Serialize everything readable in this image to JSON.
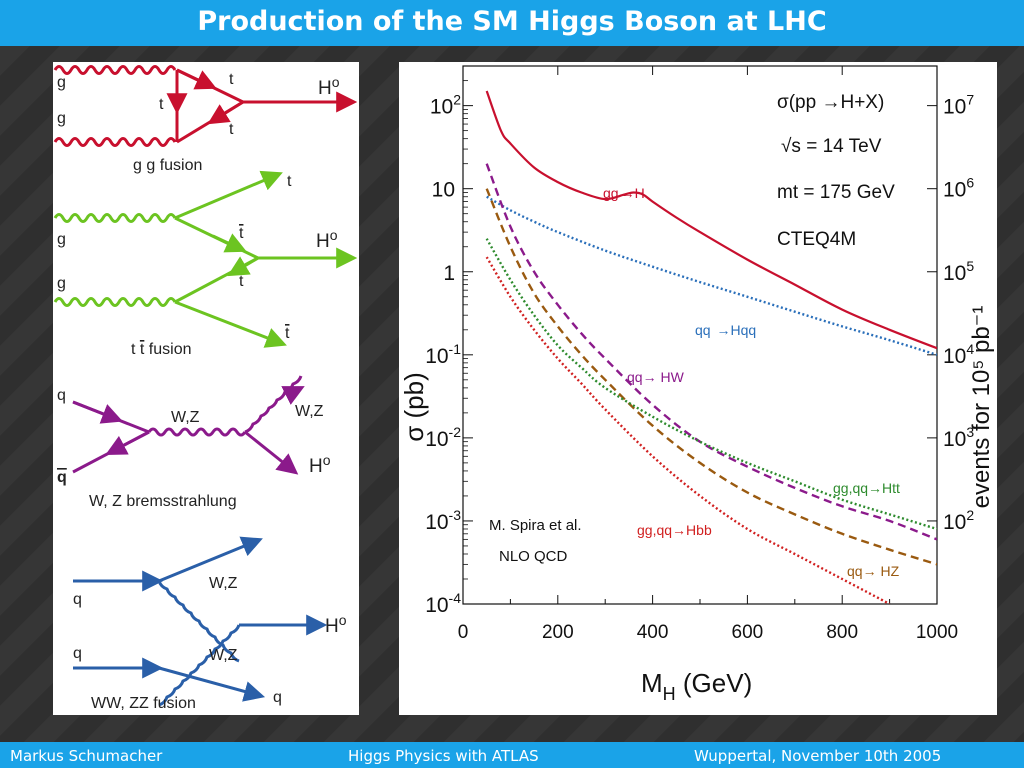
{
  "slide": {
    "title": "Production of the SM Higgs Boson at LHC",
    "footer": {
      "author": "Markus  Schumacher",
      "talk": "Higgs Physics  with ATLAS",
      "place_date": "Wuppertal, November 10th 2005"
    },
    "colors": {
      "bar": "#1aa3e8",
      "gg": "#c8102e",
      "ttbar": "#6cc421",
      "bremsstrahlung": "#8b1a8b",
      "vbf": "#2a5fa8"
    }
  },
  "diagrams": {
    "ggf": {
      "caption": "g g fusion",
      "g_top": "g",
      "g_bottom": "g",
      "t_top": "t",
      "t_mid": "t",
      "t_bottom": "t",
      "higgs": "H",
      "higgs_sup": "o"
    },
    "tth": {
      "caption_pre": "t ",
      "caption_bar": "t",
      "caption_post": " fusion",
      "g_top": "g",
      "g_bottom": "g",
      "t_top": "t",
      "tbar_mid": "t",
      "t_mid": "t",
      "tbar_bottom": "t",
      "higgs": "H",
      "higgs_sup": "o"
    },
    "wzbrems": {
      "caption": "W, Z bremsstrahlung",
      "q": "q",
      "qbar": "q",
      "boson_prop": "W,Z",
      "boson_out": "W,Z",
      "higgs": "H",
      "higgs_sup": "o"
    },
    "vbf": {
      "caption": "WW, ZZ fusion",
      "q_in_top": "q",
      "q_in_bottom": "q",
      "wz_top": "W,Z",
      "wz_bottom": "W,Z",
      "q_out": "q",
      "higgs": "H",
      "higgs_sup": "o"
    }
  },
  "chart_data": {
    "type": "line",
    "xlabel_main": "M",
    "xlabel_sub": "H",
    "xlabel_unit": " (GeV)",
    "ylabel": "σ (pb)",
    "y2label": "events for 10⁵ pb⁻¹",
    "x_ticks": [
      "0",
      "200",
      "400",
      "600",
      "800",
      "1000"
    ],
    "y_ticks": [
      {
        "base": "10",
        "exp": "2"
      },
      {
        "base": "10",
        "exp": ""
      },
      {
        "base": "1",
        "exp": ""
      },
      {
        "base": "10",
        "exp": "-1"
      },
      {
        "base": "10",
        "exp": "-2"
      },
      {
        "base": "10",
        "exp": "-3"
      },
      {
        "base": "10",
        "exp": "-4"
      }
    ],
    "y2_ticks": [
      {
        "base": "10",
        "exp": "7"
      },
      {
        "base": "10",
        "exp": "6"
      },
      {
        "base": "10",
        "exp": "5"
      },
      {
        "base": "10",
        "exp": "4"
      },
      {
        "base": "10",
        "exp": "3"
      },
      {
        "base": "10",
        "exp": "2"
      }
    ],
    "xlim": [
      0,
      1000
    ],
    "ylim": [
      0.0001,
      300
    ],
    "y_scale": "log",
    "annotations": {
      "process": "σ(pp →H+X)",
      "sqrt_s": "√s = 14 TeV",
      "mt": "mt = 175 GeV",
      "pdf": "CTEQ4M",
      "ref1": "M. Spira et al.",
      "ref2": "NLO  QCD"
    },
    "series": [
      {
        "name": "gg →H",
        "color": "#c8102e",
        "style": "solid",
        "x": [
          50,
          80,
          100,
          150,
          200,
          250,
          300,
          340,
          360,
          380,
          400,
          450,
          500,
          600,
          700,
          800,
          900,
          1000
        ],
        "y": [
          150,
          50,
          35,
          18,
          12,
          9,
          7.5,
          8.5,
          9,
          8.5,
          7,
          4.5,
          3,
          1.4,
          0.7,
          0.35,
          0.2,
          0.12
        ]
      },
      {
        "name": "qq →Hqq",
        "color": "#2a6fba",
        "style": "dotted",
        "x": [
          50,
          100,
          150,
          200,
          300,
          400,
          500,
          600,
          700,
          800,
          900,
          1000
        ],
        "y": [
          8,
          5.5,
          4,
          3,
          1.8,
          1.15,
          0.75,
          0.5,
          0.33,
          0.22,
          0.15,
          0.1
        ]
      },
      {
        "name": "qq̄→ HW",
        "color": "#8b1a8b",
        "style": "dashed",
        "x": [
          50,
          100,
          150,
          200,
          250,
          300,
          400,
          500,
          600,
          700,
          800,
          900,
          1000
        ],
        "y": [
          20,
          3.5,
          1,
          0.4,
          0.18,
          0.09,
          0.025,
          0.009,
          0.0045,
          0.0025,
          0.0015,
          0.001,
          0.0006
        ]
      },
      {
        "name": "qq̄→ HZ",
        "color": "#9a5a10",
        "style": "dashed",
        "x": [
          50,
          100,
          150,
          200,
          250,
          300,
          400,
          500,
          600,
          700,
          800,
          900,
          1000
        ],
        "y": [
          10,
          2,
          0.55,
          0.22,
          0.1,
          0.05,
          0.014,
          0.005,
          0.0022,
          0.0012,
          0.0007,
          0.00045,
          0.0003
        ]
      },
      {
        "name": "gg,qq̄→Htt̄",
        "color": "#2e8b2e",
        "style": "dotted",
        "x": [
          50,
          100,
          150,
          200,
          250,
          300,
          400,
          500,
          600,
          700,
          800,
          900,
          1000
        ],
        "y": [
          2.5,
          0.8,
          0.3,
          0.13,
          0.07,
          0.04,
          0.018,
          0.009,
          0.005,
          0.003,
          0.0018,
          0.0012,
          0.0008
        ]
      },
      {
        "name": "gg,qq̄→Hbb̄",
        "color": "#d12020",
        "style": "dotted",
        "x": [
          50,
          100,
          150,
          200,
          250,
          300,
          400,
          500,
          600,
          700,
          800,
          900
        ],
        "y": [
          1.5,
          0.5,
          0.2,
          0.09,
          0.045,
          0.022,
          0.006,
          0.002,
          0.0008,
          0.0004,
          0.0002,
          0.0001
        ]
      }
    ],
    "curve_labels": {
      "gg_h": {
        "pre": "gg",
        "post": "H"
      },
      "qq_hqq": {
        "pre": "qq ",
        "post": "Hqq"
      },
      "hw": {
        "pre": "qq",
        "post": " HW"
      },
      "htt": {
        "pre": "gg,qq",
        "post": "Htt"
      },
      "hbb": {
        "pre": "gg,qq",
        "post": "Hbb"
      },
      "hz": {
        "pre": "qq",
        "post": " HZ"
      }
    }
  }
}
